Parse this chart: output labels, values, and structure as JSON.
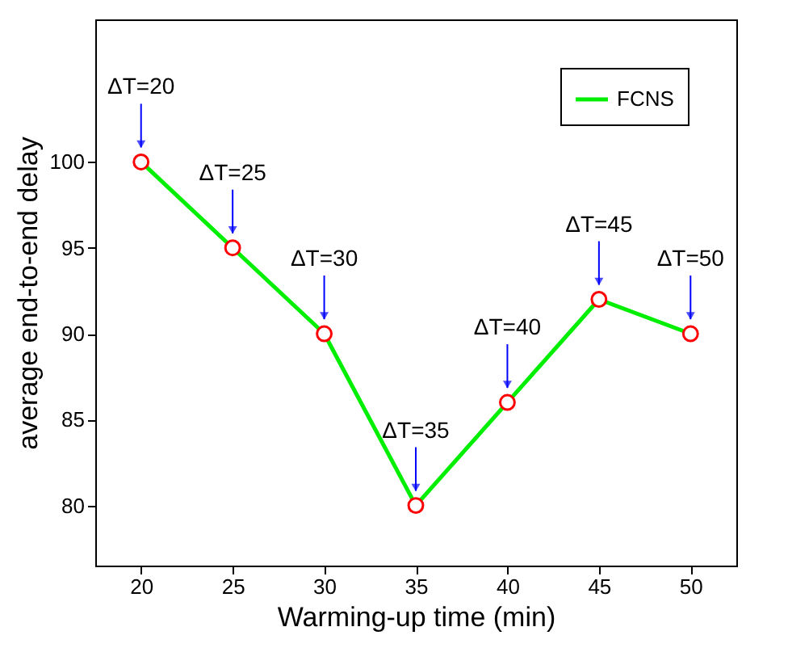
{
  "chart_data": {
    "type": "line",
    "xlabel": "Warming-up time (min)",
    "ylabel": "average end-to-end delay",
    "x": [
      20,
      25,
      30,
      35,
      40,
      45,
      50
    ],
    "series": [
      {
        "name": "FCNS",
        "color": "#00ee00",
        "values": [
          100,
          95,
          90,
          80,
          86,
          92,
          90
        ]
      }
    ],
    "xlim": [
      17.5,
      52.5
    ],
    "xticks": [
      20,
      25,
      30,
      35,
      40,
      45,
      50
    ],
    "ylim": [
      76.5,
      108.3
    ],
    "yticks": [
      80,
      85,
      90,
      95,
      100
    ],
    "marker": "circle",
    "legend": "top right",
    "grid": false,
    "annotations": [
      {
        "text": "ΔT=20",
        "x": 20,
        "y": 100
      },
      {
        "text": "ΔT=25",
        "x": 25,
        "y": 95
      },
      {
        "text": "ΔT=30",
        "x": 30,
        "y": 90
      },
      {
        "text": "ΔT=35",
        "x": 35,
        "y": 80
      },
      {
        "text": "ΔT=40",
        "x": 40,
        "y": 86
      },
      {
        "text": "ΔT=45",
        "x": 45,
        "y": 92
      },
      {
        "text": "ΔT=50",
        "x": 50,
        "y": 90
      }
    ]
  }
}
